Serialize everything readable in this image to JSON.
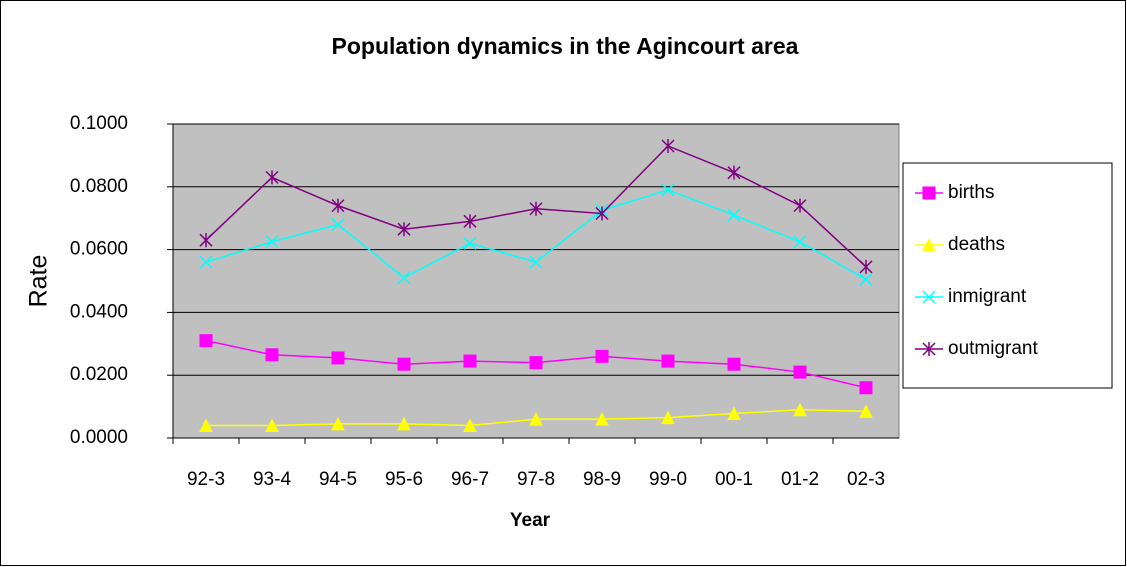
{
  "chart_data": {
    "type": "line",
    "title": "Population dynamics in the Agincourt area",
    "x_label": "Year",
    "y_label": "Rate",
    "categories": [
      "92-3",
      "93-4",
      "94-5",
      "95-6",
      "96-7",
      "97-8",
      "98-9",
      "99-0",
      "00-1",
      "01-2",
      "02-3"
    ],
    "series": [
      {
        "name": "births",
        "color": "#ff00ff",
        "marker": "square",
        "values": [
          0.031,
          0.0265,
          0.0255,
          0.0235,
          0.0245,
          0.024,
          0.026,
          0.0245,
          0.0235,
          0.021,
          0.016
        ]
      },
      {
        "name": "deaths",
        "color": "#ffff00",
        "marker": "triangle",
        "values": [
          0.004,
          0.004,
          0.0045,
          0.0045,
          0.004,
          0.006,
          0.006,
          0.0065,
          0.0078,
          0.009,
          0.0085
        ]
      },
      {
        "name": "inmigrant",
        "color": "#00ffff",
        "marker": "x",
        "values": [
          0.056,
          0.0625,
          0.068,
          0.051,
          0.062,
          0.056,
          0.0725,
          0.079,
          0.071,
          0.0625,
          0.0505
        ]
      },
      {
        "name": "outmigrant",
        "color": "#800080",
        "marker": "star",
        "values": [
          0.063,
          0.083,
          0.074,
          0.0665,
          0.069,
          0.073,
          0.0715,
          0.093,
          0.0845,
          0.074,
          0.0545
        ]
      }
    ],
    "ylim": [
      0,
      0.1
    ],
    "yticks": [
      {
        "value": 0,
        "label": "0.0000"
      },
      {
        "value": 0.02,
        "label": "0.0200"
      },
      {
        "value": 0.04,
        "label": "0.0400"
      },
      {
        "value": 0.06,
        "label": "0.0600"
      },
      {
        "value": 0.08,
        "label": "0.0800"
      },
      {
        "value": 0.1,
        "label": "0.1000"
      }
    ],
    "grid": true,
    "plot_background": "#c0c0c0",
    "legend": "right"
  }
}
